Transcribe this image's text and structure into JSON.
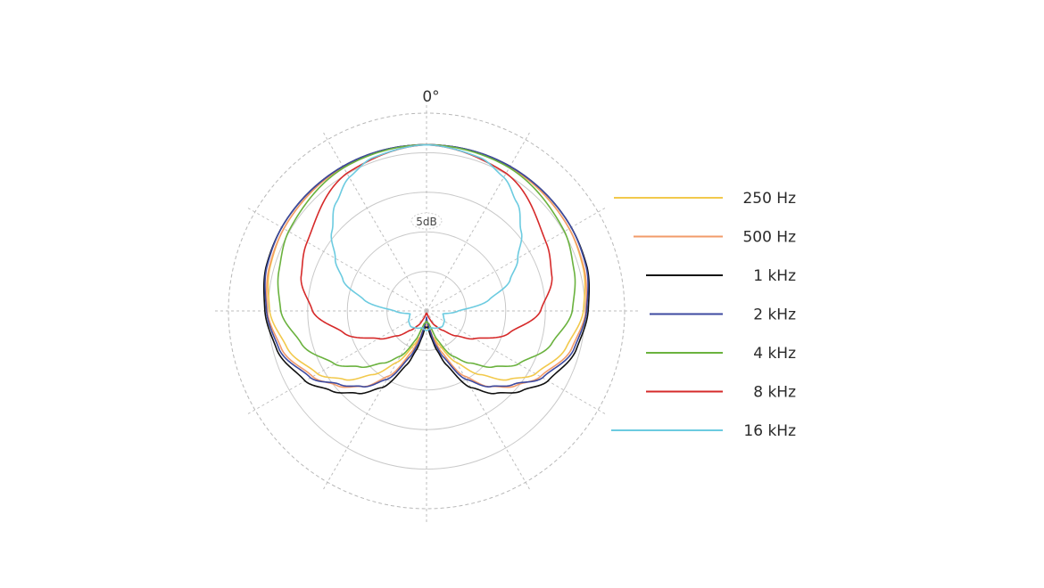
{
  "chart_data": {
    "type": "polar-line",
    "top_label": "0°",
    "ring_label": "5dB",
    "r_max": 25,
    "rings": [
      5,
      10,
      15,
      20,
      25
    ],
    "spokes_deg": [
      0,
      30,
      60,
      90,
      120,
      150,
      180,
      210,
      240,
      270,
      300,
      330
    ],
    "legend_placement": "right",
    "series": [
      {
        "name": "250 Hz",
        "color": "#f2c94c",
        "angles": [
          0,
          30,
          60,
          75,
          90,
          105,
          120,
          130,
          140,
          150,
          160,
          165,
          170,
          175,
          180
        ],
        "values": [
          21.0,
          21.0,
          20.8,
          20.5,
          19.8,
          18.2,
          15.9,
          13.5,
          10.5,
          7.5,
          4.5,
          3.5,
          3.0,
          2.0,
          2.2
        ]
      },
      {
        "name": "500 Hz",
        "color": "#f29b6a",
        "angles": [
          0,
          30,
          60,
          75,
          90,
          105,
          120,
          130,
          140,
          150,
          160,
          165,
          170,
          175,
          180
        ],
        "values": [
          21.0,
          21.0,
          20.8,
          20.6,
          20.1,
          18.9,
          16.6,
          14.7,
          12.5,
          9.5,
          5.5,
          3.8,
          2.2,
          1.8,
          1.8
        ]
      },
      {
        "name": "1 kHz",
        "color": "#111111",
        "angles": [
          0,
          30,
          60,
          75,
          90,
          105,
          120,
          130,
          140,
          150,
          160,
          165,
          170,
          175,
          180
        ],
        "values": [
          21.0,
          21.1,
          21.1,
          21.0,
          20.4,
          19.5,
          17.7,
          15.7,
          13.6,
          11.2,
          7.2,
          5.2,
          3.4,
          2.0,
          2.1
        ]
      },
      {
        "name": "2 kHz",
        "color": "#3d4aa0",
        "angles": [
          0,
          30,
          60,
          75,
          90,
          105,
          120,
          130,
          140,
          150,
          160,
          165,
          170,
          175,
          180
        ],
        "values": [
          21.0,
          21.1,
          21.1,
          20.9,
          20.2,
          19.2,
          16.9,
          14.4,
          12.5,
          10.0,
          6.2,
          4.5,
          2.5,
          1.5,
          0.8
        ]
      },
      {
        "name": "4 kHz",
        "color": "#6ab23e",
        "angles": [
          0,
          30,
          60,
          75,
          90,
          105,
          120,
          130,
          140,
          150,
          160,
          165,
          170,
          175,
          180
        ],
        "values": [
          21.0,
          20.9,
          20.1,
          19.3,
          18.4,
          16.3,
          13.4,
          11.0,
          8.6,
          6.6,
          3.8,
          2.2,
          1.6,
          1.5,
          1.3
        ]
      },
      {
        "name": "8 kHz",
        "color": "#d62a2a",
        "angles": [
          0,
          30,
          60,
          75,
          90,
          105,
          120,
          130,
          140,
          150,
          160,
          165,
          170,
          175,
          180
        ],
        "values": [
          21.0,
          20.1,
          17.4,
          16.4,
          14.4,
          10.8,
          7.0,
          4.9,
          3.2,
          2.1,
          1.0,
          0.5,
          0.3,
          0.4,
          0.5
        ]
      },
      {
        "name": "16 kHz",
        "color": "#6ccbe0",
        "angles": [
          0,
          20,
          30,
          40,
          50,
          60,
          70,
          80,
          90,
          100,
          110,
          120,
          135,
          150,
          165,
          180
        ],
        "values": [
          21.0,
          20.5,
          19.5,
          17.8,
          15.6,
          13.3,
          11.2,
          8.0,
          4.0,
          2.1,
          2.3,
          2.6,
          2.8,
          2.5,
          2.2,
          2.5
        ]
      }
    ]
  }
}
